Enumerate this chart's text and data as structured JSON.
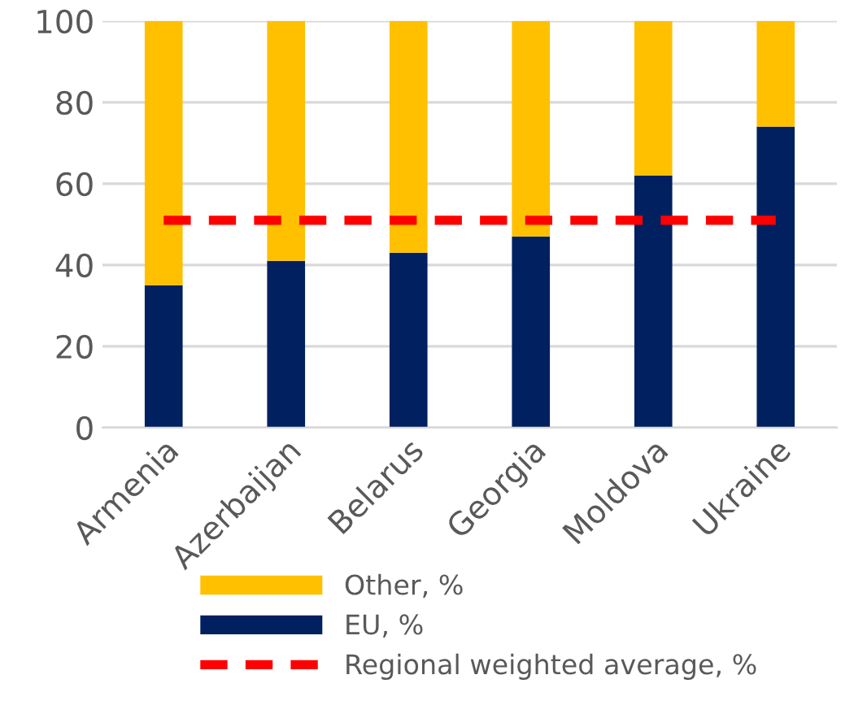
{
  "chart_data": {
    "type": "bar",
    "stacked": true,
    "categories": [
      "Armenia",
      "Azerbaijan",
      "Belarus",
      "Georgia",
      "Moldova",
      "Ukraine"
    ],
    "series": [
      {
        "name": "EU, %",
        "color": "#002060",
        "values": [
          35,
          41,
          43,
          47,
          62,
          74
        ]
      },
      {
        "name": "Other, %",
        "color": "#ffc000",
        "values": [
          65,
          59,
          57,
          53,
          38,
          26
        ]
      },
      {
        "name": "Regional weighted average, %",
        "type": "line",
        "line_style": "dashed",
        "color": "#ff0000",
        "values": [
          51,
          51,
          51,
          51,
          51,
          51
        ]
      }
    ],
    "ylim": [
      0,
      100
    ],
    "yticks": [
      0,
      20,
      40,
      60,
      80,
      100
    ],
    "grid": "y",
    "legend": "bottom"
  }
}
